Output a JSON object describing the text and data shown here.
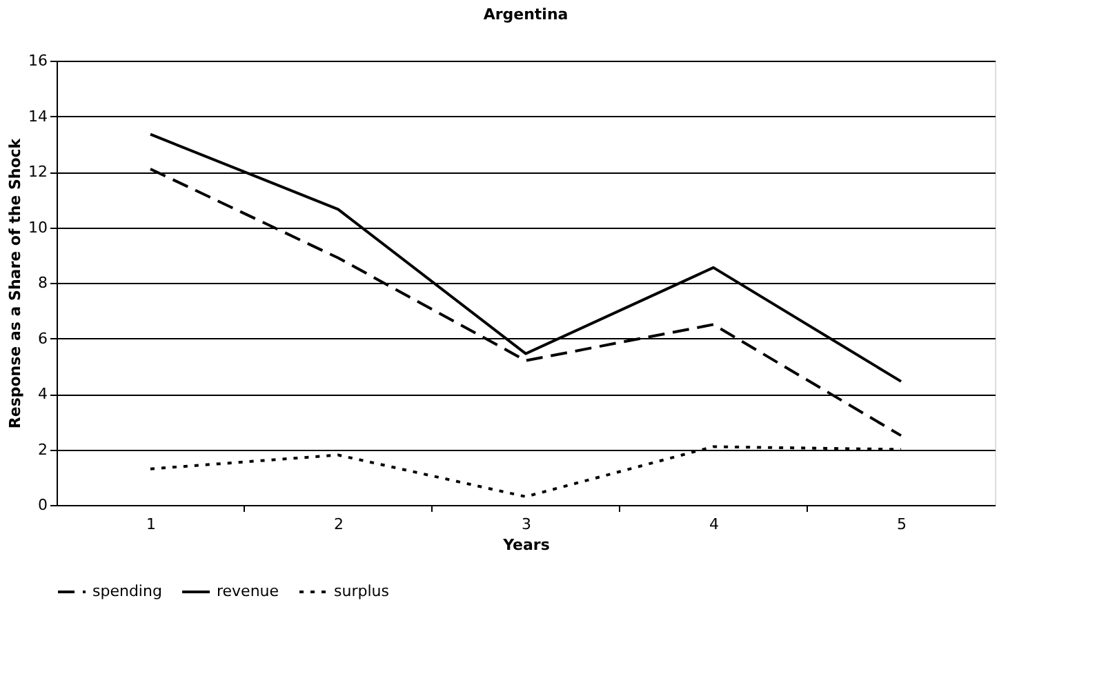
{
  "chart_data": {
    "type": "line",
    "title": "Argentina",
    "xlabel": "Years",
    "ylabel": "Response as a Share of the Shock",
    "categories": [
      "1",
      "2",
      "3",
      "4",
      "5"
    ],
    "series": [
      {
        "name": "spending",
        "color": "#000000",
        "line_style": "dashed",
        "values": [
          12.1,
          8.9,
          5.2,
          6.5,
          2.5
        ]
      },
      {
        "name": "revenue",
        "color": "#000000",
        "line_style": "solid",
        "values": [
          13.35,
          10.65,
          5.45,
          8.55,
          4.45
        ]
      },
      {
        "name": "surplus",
        "color": "#000000",
        "line_style": "dotted",
        "values": [
          1.3,
          1.8,
          0.3,
          2.1,
          2.0
        ]
      }
    ],
    "ylim": [
      0,
      16
    ],
    "yticks": [
      0,
      2,
      4,
      6,
      8,
      10,
      12,
      14,
      16
    ],
    "grid": "y",
    "legend": "bottom",
    "marker": "none"
  }
}
